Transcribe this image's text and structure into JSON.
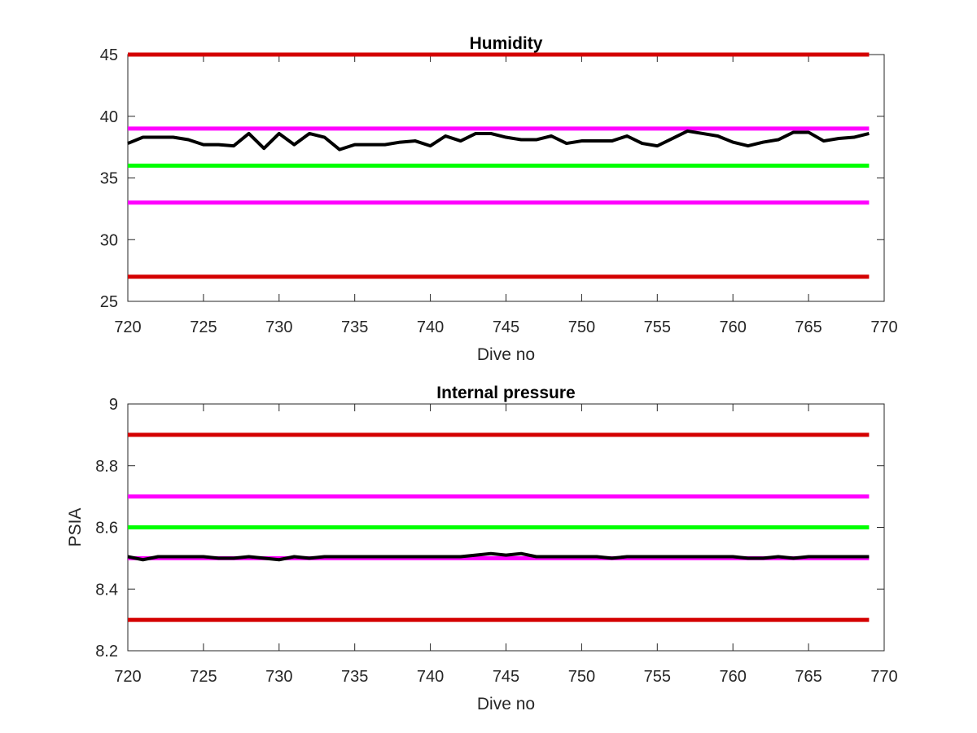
{
  "colors": {
    "data_line": "#000000",
    "outer_limit": "#d40000",
    "warning_limit": "#ff00ff",
    "target": "#00ff00",
    "axes": "#262626"
  },
  "chart_data": [
    {
      "type": "line",
      "title": "Humidity",
      "xlabel": "Dive no",
      "ylabel": "",
      "xlim": [
        720,
        770
      ],
      "ylim": [
        25,
        45
      ],
      "x_ticks": [
        720,
        725,
        730,
        735,
        740,
        745,
        750,
        755,
        760,
        765,
        770
      ],
      "y_ticks": [
        25,
        30,
        35,
        40,
        45
      ],
      "x_tick_labels": [
        "720",
        "725",
        "730",
        "735",
        "740",
        "745",
        "750",
        "755",
        "760",
        "765",
        "770"
      ],
      "y_tick_labels": [
        "25",
        "30",
        "35",
        "40",
        "45"
      ],
      "grid": false,
      "reference_lines": [
        {
          "y": 45,
          "x_range": [
            720,
            769
          ],
          "color": "#d40000"
        },
        {
          "y": 39,
          "x_range": [
            720,
            769
          ],
          "color": "#ff00ff"
        },
        {
          "y": 36,
          "x_range": [
            720,
            769
          ],
          "color": "#00ff00"
        },
        {
          "y": 33,
          "x_range": [
            720,
            769
          ],
          "color": "#ff00ff"
        },
        {
          "y": 27,
          "x_range": [
            720,
            769
          ],
          "color": "#d40000"
        }
      ],
      "series": [
        {
          "color": "#000000",
          "x": [
            720,
            721,
            722,
            723,
            724,
            725,
            726,
            727,
            728,
            729,
            730,
            731,
            732,
            733,
            734,
            735,
            736,
            737,
            738,
            739,
            740,
            741,
            742,
            743,
            744,
            745,
            746,
            747,
            748,
            749,
            750,
            751,
            752,
            753,
            754,
            755,
            756,
            757,
            758,
            759,
            760,
            761,
            762,
            763,
            764,
            765,
            766,
            767,
            768,
            769
          ],
          "values": [
            37.8,
            38.3,
            38.3,
            38.3,
            38.1,
            37.7,
            37.7,
            37.6,
            38.6,
            37.4,
            38.6,
            37.7,
            38.6,
            38.3,
            37.3,
            37.7,
            37.7,
            37.7,
            37.9,
            38.0,
            37.6,
            38.4,
            38.0,
            38.6,
            38.6,
            38.3,
            38.1,
            38.1,
            38.4,
            37.8,
            38.0,
            38.0,
            38.0,
            38.4,
            37.8,
            37.6,
            38.2,
            38.8,
            38.6,
            38.4,
            37.9,
            37.6,
            37.9,
            38.1,
            38.7,
            38.7,
            38.0,
            38.2,
            38.3,
            38.6
          ]
        }
      ]
    },
    {
      "type": "line",
      "title": "Internal pressure",
      "xlabel": "Dive no",
      "ylabel": "PSIA",
      "xlim": [
        720,
        770
      ],
      "ylim": [
        8.2,
        9
      ],
      "x_ticks": [
        720,
        725,
        730,
        735,
        740,
        745,
        750,
        755,
        760,
        765,
        770
      ],
      "y_ticks": [
        8.2,
        8.4,
        8.6,
        8.8,
        9
      ],
      "x_tick_labels": [
        "720",
        "725",
        "730",
        "735",
        "740",
        "745",
        "750",
        "755",
        "760",
        "765",
        "770"
      ],
      "y_tick_labels": [
        "8.2",
        "8.4",
        "8.6",
        "8.8",
        "9"
      ],
      "grid": false,
      "reference_lines": [
        {
          "y": 8.9,
          "x_range": [
            720,
            769
          ],
          "color": "#d40000"
        },
        {
          "y": 8.7,
          "x_range": [
            720,
            769
          ],
          "color": "#ff00ff"
        },
        {
          "y": 8.6,
          "x_range": [
            720,
            769
          ],
          "color": "#00ff00"
        },
        {
          "y": 8.5,
          "x_range": [
            720,
            769
          ],
          "color": "#ff00ff"
        },
        {
          "y": 8.3,
          "x_range": [
            720,
            769
          ],
          "color": "#d40000"
        }
      ],
      "series": [
        {
          "color": "#000000",
          "x": [
            720,
            721,
            722,
            723,
            724,
            725,
            726,
            727,
            728,
            729,
            730,
            731,
            732,
            733,
            734,
            735,
            736,
            737,
            738,
            739,
            740,
            741,
            742,
            743,
            744,
            745,
            746,
            747,
            748,
            749,
            750,
            751,
            752,
            753,
            754,
            755,
            756,
            757,
            758,
            759,
            760,
            761,
            762,
            763,
            764,
            765,
            766,
            767,
            768,
            769
          ],
          "values": [
            8.505,
            8.495,
            8.505,
            8.505,
            8.505,
            8.505,
            8.5,
            8.5,
            8.505,
            8.5,
            8.495,
            8.505,
            8.5,
            8.505,
            8.505,
            8.505,
            8.505,
            8.505,
            8.505,
            8.505,
            8.505,
            8.505,
            8.505,
            8.51,
            8.515,
            8.51,
            8.515,
            8.505,
            8.505,
            8.505,
            8.505,
            8.505,
            8.5,
            8.505,
            8.505,
            8.505,
            8.505,
            8.505,
            8.505,
            8.505,
            8.505,
            8.5,
            8.5,
            8.505,
            8.5,
            8.505,
            8.505,
            8.505,
            8.505,
            8.505
          ]
        }
      ]
    }
  ]
}
